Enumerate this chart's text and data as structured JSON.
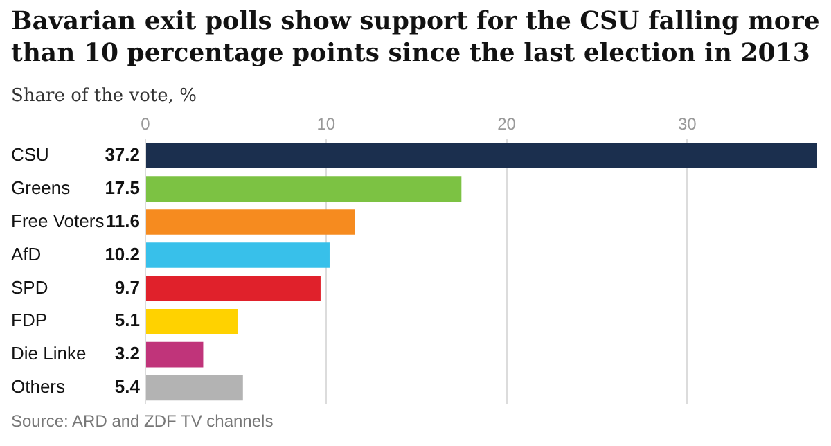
{
  "chart_data": {
    "type": "bar",
    "orientation": "horizontal",
    "title": "Bavarian exit polls show support for the CSU falling more than 10 percentage points since the last election in 2013",
    "subtitle": "Share of the vote, %",
    "categories": [
      "CSU",
      "Greens",
      "Free Voters",
      "AfD",
      "SPD",
      "FDP",
      "Die Linke",
      "Others"
    ],
    "values": [
      37.2,
      17.5,
      11.6,
      10.2,
      9.7,
      5.1,
      3.2,
      5.4
    ],
    "colors": [
      "#1b2f4e",
      "#7cc243",
      "#f68b1f",
      "#38c0ea",
      "#e0212b",
      "#ffd200",
      "#c0347a",
      "#b3b3b3"
    ],
    "xlim": [
      0,
      37.2
    ],
    "xticks": [
      0,
      10,
      20,
      30
    ],
    "grid": "x",
    "data_labels": true,
    "legend": false,
    "annotations": [
      "Source: ARD and ZDF TV channels"
    ]
  }
}
